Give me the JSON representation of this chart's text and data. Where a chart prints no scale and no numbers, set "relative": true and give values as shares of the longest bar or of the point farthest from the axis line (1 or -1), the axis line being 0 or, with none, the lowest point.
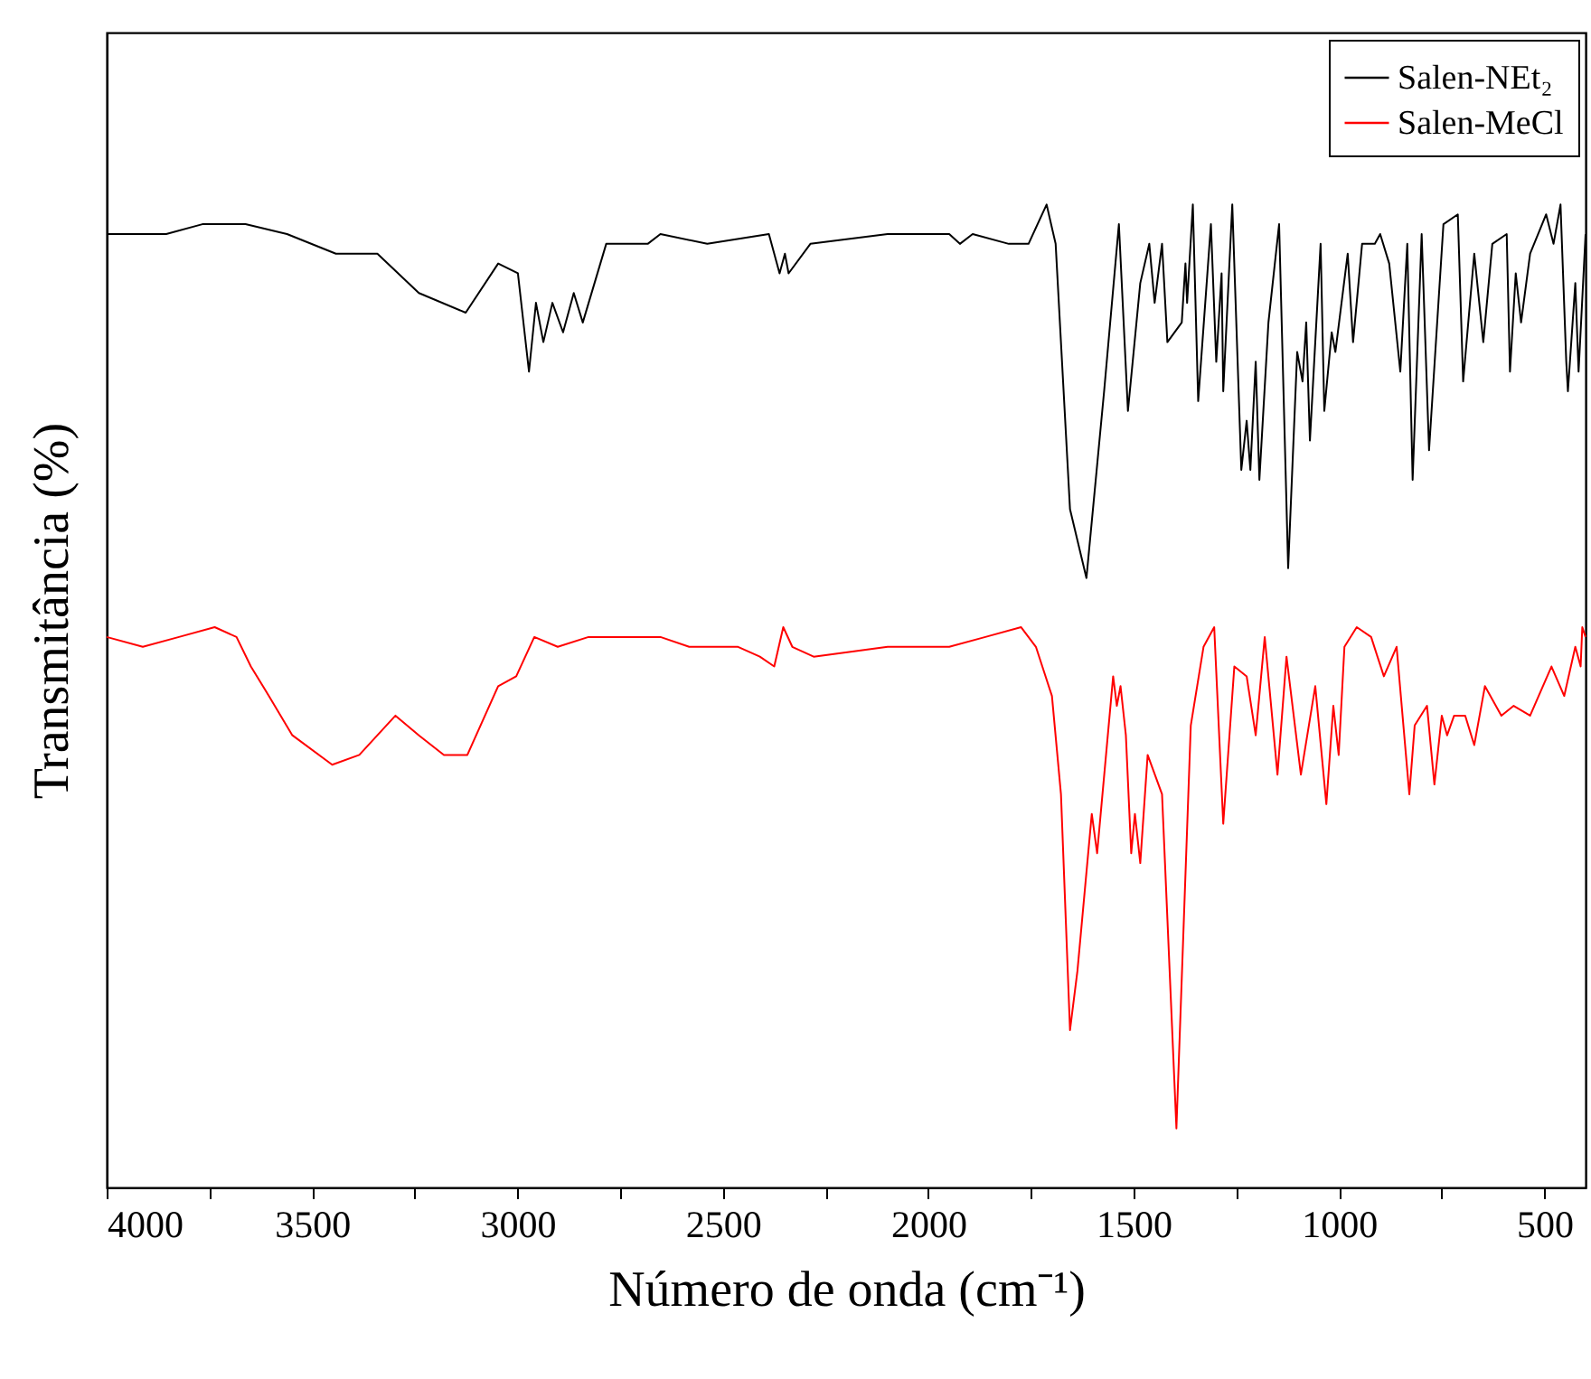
{
  "chart_data": {
    "type": "line",
    "relative": true,
    "xlabel": "Número de onda (cm⁻¹)",
    "ylabel": "Transmitância (%)",
    "xlim": [
      4000,
      400
    ],
    "xticks": [
      4000,
      {
        "value": 3750,
        "label": null
      },
      3500,
      {
        "value": 3250,
        "label": null
      },
      3000,
      {
        "value": 2750,
        "label": null
      },
      2500,
      {
        "value": 2250,
        "label": null
      },
      2000,
      {
        "value": 1750,
        "label": null
      },
      1500,
      {
        "value": 1250,
        "label": null
      },
      1000,
      {
        "value": 750,
        "label": null
      },
      500
    ],
    "legend": "top right",
    "grid": false,
    "marker": "none",
    "line_style": "solid",
    "series": [
      {
        "name": "Salen-NEt₂",
        "color": "#000000",
        "x": [
          4000,
          3912,
          3855,
          3767,
          3662,
          3561,
          3442,
          3341,
          3240,
          3126,
          3047,
          2999,
          2972,
          2955,
          2937,
          2915,
          2889,
          2863,
          2841,
          2784,
          2683,
          2652,
          2538,
          2388,
          2362,
          2349,
          2340,
          2287,
          2099,
          1949,
          1923,
          1892,
          1804,
          1756,
          1712,
          1690,
          1655,
          1615,
          1572,
          1536,
          1514,
          1484,
          1462,
          1449,
          1431,
          1418,
          1383,
          1374,
          1370,
          1356,
          1343,
          1312,
          1299,
          1286,
          1282,
          1260,
          1238,
          1225,
          1216,
          1203,
          1194,
          1172,
          1146,
          1124,
          1102,
          1089,
          1080,
          1071,
          1045,
          1036,
          1018,
          1009,
          979,
          966,
          944,
          913,
          900,
          878,
          851,
          834,
          821,
          799,
          781,
          746,
          711,
          698,
          671,
          649,
          627,
          592,
          584,
          570,
          557,
          535,
          496,
          478,
          461,
          447,
          443,
          425,
          417,
          400
        ],
        "values": [
          0.97,
          0.97,
          0.97,
          0.98,
          0.98,
          0.97,
          0.95,
          0.95,
          0.91,
          0.89,
          0.94,
          0.93,
          0.83,
          0.9,
          0.86,
          0.9,
          0.87,
          0.91,
          0.88,
          0.96,
          0.96,
          0.97,
          0.96,
          0.97,
          0.93,
          0.95,
          0.93,
          0.96,
          0.97,
          0.97,
          0.96,
          0.97,
          0.96,
          0.96,
          1.0,
          0.96,
          0.69,
          0.62,
          0.81,
          0.98,
          0.79,
          0.92,
          0.96,
          0.9,
          0.96,
          0.86,
          0.88,
          0.94,
          0.9,
          1.0,
          0.8,
          0.98,
          0.84,
          0.93,
          0.81,
          1.0,
          0.73,
          0.78,
          0.73,
          0.84,
          0.72,
          0.88,
          0.98,
          0.63,
          0.85,
          0.82,
          0.88,
          0.76,
          0.96,
          0.79,
          0.87,
          0.85,
          0.95,
          0.86,
          0.96,
          0.96,
          0.97,
          0.94,
          0.83,
          0.96,
          0.72,
          0.97,
          0.75,
          0.98,
          0.99,
          0.82,
          0.95,
          0.86,
          0.96,
          0.97,
          0.83,
          0.93,
          0.88,
          0.95,
          0.99,
          0.96,
          1.0,
          0.84,
          0.81,
          0.92,
          0.83,
          0.97
        ]
      },
      {
        "name": "Salen-MeCl",
        "color": "#ff0000",
        "x": [
          4000,
          3912,
          3824,
          3737,
          3684,
          3649,
          3605,
          3548,
          3451,
          3385,
          3297,
          3240,
          3179,
          3122,
          3047,
          3003,
          2959,
          2902,
          2827,
          2792,
          2652,
          2582,
          2463,
          2410,
          2375,
          2353,
          2331,
          2279,
          2099,
          1949,
          1861,
          1774,
          1738,
          1699,
          1677,
          1655,
          1637,
          1602,
          1589,
          1550,
          1541,
          1532,
          1519,
          1506,
          1497,
          1484,
          1466,
          1431,
          1396,
          1361,
          1330,
          1304,
          1282,
          1255,
          1225,
          1203,
          1181,
          1150,
          1128,
          1093,
          1058,
          1031,
          1014,
          1001,
          987,
          957,
          922,
          891,
          860,
          829,
          816,
          786,
          768,
          750,
          737,
          720,
          693,
          671,
          645,
          605,
          575,
          535,
          483,
          452,
          425,
          412,
          408,
          400
        ],
        "values": [
          0.56,
          0.55,
          0.56,
          0.57,
          0.56,
          0.53,
          0.5,
          0.46,
          0.43,
          0.44,
          0.48,
          0.46,
          0.44,
          0.44,
          0.51,
          0.52,
          0.56,
          0.55,
          0.56,
          0.56,
          0.56,
          0.55,
          0.55,
          0.54,
          0.53,
          0.57,
          0.55,
          0.54,
          0.55,
          0.55,
          0.56,
          0.57,
          0.55,
          0.5,
          0.4,
          0.16,
          0.22,
          0.38,
          0.34,
          0.52,
          0.49,
          0.51,
          0.46,
          0.34,
          0.38,
          0.33,
          0.44,
          0.4,
          0.06,
          0.47,
          0.55,
          0.57,
          0.37,
          0.53,
          0.52,
          0.46,
          0.56,
          0.42,
          0.54,
          0.42,
          0.51,
          0.39,
          0.49,
          0.44,
          0.55,
          0.57,
          0.56,
          0.52,
          0.55,
          0.4,
          0.47,
          0.49,
          0.41,
          0.48,
          0.46,
          0.48,
          0.48,
          0.45,
          0.51,
          0.48,
          0.49,
          0.48,
          0.53,
          0.5,
          0.55,
          0.53,
          0.57,
          0.56
        ]
      }
    ]
  }
}
